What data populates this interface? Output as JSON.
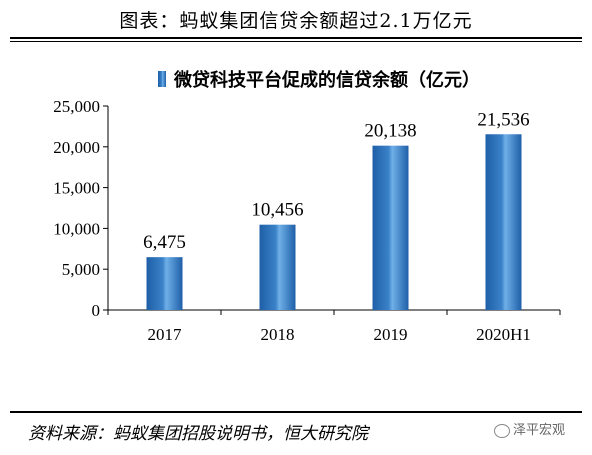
{
  "figure_title": "图表：蚂蚁集团信贷余额超过2.1万亿元",
  "source_note": "资料来源：蚂蚁集团招股说明书，恒大研究院",
  "watermark": "泽平宏观",
  "chart_data": {
    "type": "bar",
    "categories": [
      "2017",
      "2018",
      "2019",
      "2020H1"
    ],
    "series": [
      {
        "name": "微贷科技平台促成的信贷余额（亿元）",
        "values": [
          6475,
          10456,
          20138,
          21536
        ]
      }
    ],
    "value_labels": [
      "6,475",
      "10,456",
      "20,138",
      "21,536"
    ],
    "yticks": [
      "0",
      "5,000",
      "10,000",
      "15,000",
      "20,000",
      "25,000"
    ],
    "ylim": [
      0,
      25000
    ],
    "legend_position": "top",
    "bar_color": "#3b82c8"
  }
}
